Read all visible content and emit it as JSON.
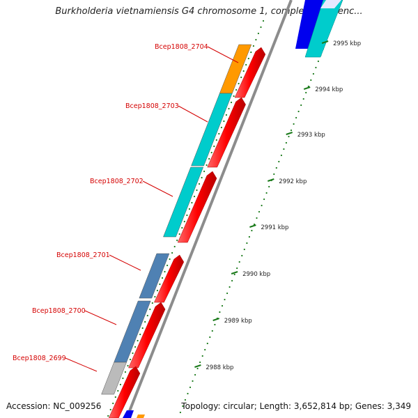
{
  "header": {
    "title": "Burkholderia vietnamiensis G4 chromosome 1, complete sequenc..."
  },
  "footer": {
    "accession": "Accession: NC_009256",
    "topology": "Topology: circular; Length: 3,652,814 bp; Genes: 3,349"
  },
  "genes": [
    {
      "name": "Bcep1808_2704",
      "feature_color": "#ff9900"
    },
    {
      "name": "Bcep1808_2703",
      "feature_color": "#00cccc"
    },
    {
      "name": "Bcep1808_2702",
      "feature_color": "#00cccc"
    },
    {
      "name": "Bcep1808_2701",
      "feature_color": "#4f81b3"
    },
    {
      "name": "Bcep1808_2700",
      "feature_color": "#4f81b3"
    },
    {
      "name": "Bcep1808_2699",
      "feature_color": "#bbbbbb"
    }
  ],
  "ticks": [
    {
      "label": "2995 kbp"
    },
    {
      "label": "2994 kbp"
    },
    {
      "label": "2993 kbp"
    },
    {
      "label": "2992 kbp"
    },
    {
      "label": "2991 kbp"
    },
    {
      "label": "2990 kbp"
    },
    {
      "label": "2989 kbp"
    },
    {
      "label": "2988 kbp"
    }
  ],
  "colors": {
    "backbone": "#8c8c8c",
    "cds_forward": "#ff0000",
    "tick": "#1a7a1a",
    "label": "#d40000",
    "blue_feature": "#0000ee"
  }
}
